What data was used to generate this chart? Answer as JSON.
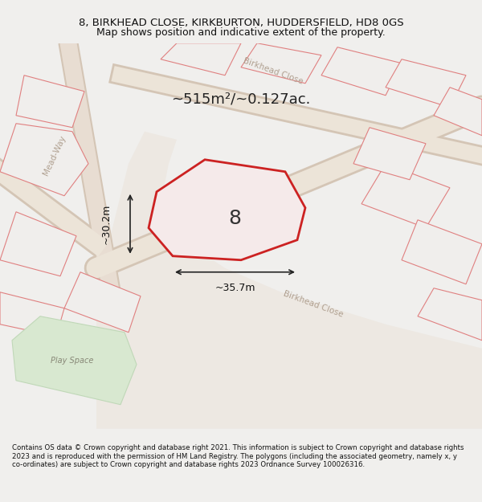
{
  "title_line1": "8, BIRKHEAD CLOSE, KIRKBURTON, HUDDERSFIELD, HD8 0GS",
  "title_line2": "Map shows position and indicative extent of the property.",
  "footer": "Contains OS data © Crown copyright and database right 2021. This information is subject to Crown copyright and database rights 2023 and is reproduced with the permission of HM Land Registry. The polygons (including the associated geometry, namely x, y co-ordinates) are subject to Crown copyright and database rights 2023 Ordnance Survey 100026316.",
  "area_text": "~515m²/~0.127ac.",
  "property_number": "8",
  "dim1_label": "~30.2m",
  "dim2_label": "~35.7m",
  "bg_color": "#f0efed",
  "map_bg": "#f5f3f0",
  "road_color": "#e8d5c8",
  "building_outline": "#e05050",
  "building_fill": "#f5f0ee",
  "highlighted_fill": "#f0e8e8",
  "highlighted_outline": "#cc2222",
  "street_label_color": "#b0a090",
  "play_space_color": "#d8e8d0",
  "play_space_text": "Play Space",
  "street1": "Mead-Way",
  "street2": "Birkhead Close",
  "street3": "Birkhead Close"
}
